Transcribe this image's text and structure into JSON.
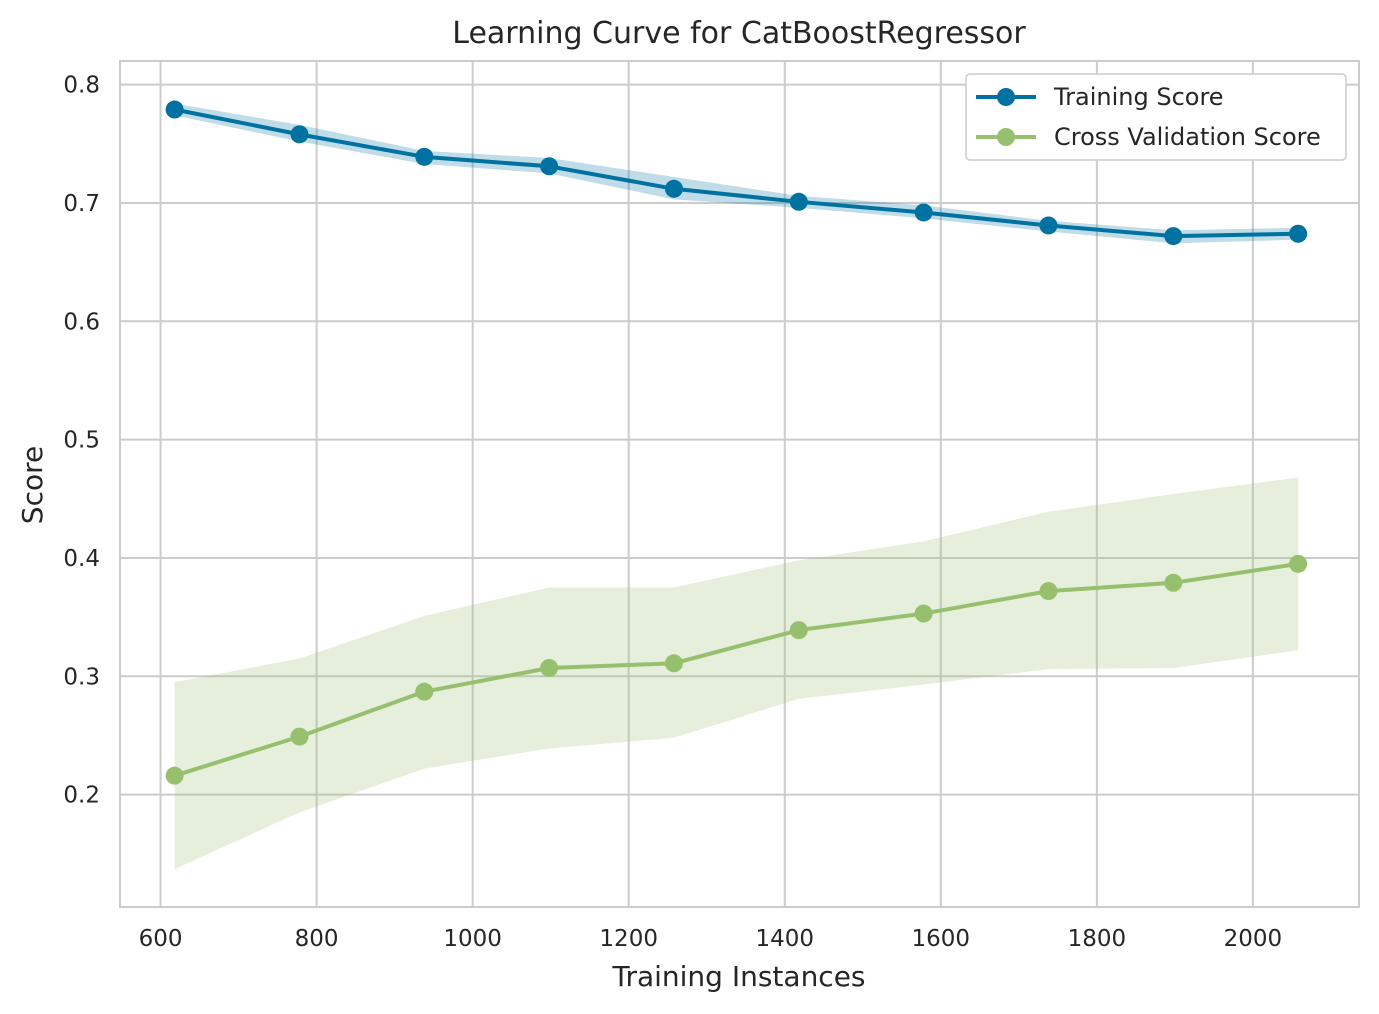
{
  "chart_data": {
    "type": "line",
    "title": "Learning Curve for CatBoostRegressor",
    "xlabel": "Training Instances",
    "ylabel": "Score",
    "xlim": [
      548,
      2136
    ],
    "ylim": [
      0.105,
      0.82
    ],
    "xticks": [
      600,
      800,
      1000,
      1200,
      1400,
      1600,
      1800,
      2000
    ],
    "yticks": [
      0.2,
      0.3,
      0.4,
      0.5,
      0.6,
      0.7,
      0.8
    ],
    "xtick_labels": [
      "600",
      "800",
      "1000",
      "1200",
      "1400",
      "1600",
      "1800",
      "2000"
    ],
    "ytick_labels": [
      "0.2",
      "0.3",
      "0.4",
      "0.5",
      "0.6",
      "0.7",
      "0.8"
    ],
    "grid": true,
    "legend_position": "top-right",
    "x": [
      618,
      778,
      938,
      1098,
      1258,
      1418,
      1578,
      1738,
      1898,
      2058
    ],
    "series": [
      {
        "name": "Training Score",
        "color": "#0072a2",
        "values": [
          0.779,
          0.758,
          0.739,
          0.731,
          0.712,
          0.701,
          0.692,
          0.681,
          0.672,
          0.674
        ],
        "band_upper": [
          0.784,
          0.766,
          0.744,
          0.738,
          0.722,
          0.706,
          0.698,
          0.685,
          0.677,
          0.679
        ],
        "band_lower": [
          0.774,
          0.752,
          0.733,
          0.725,
          0.703,
          0.696,
          0.687,
          0.676,
          0.666,
          0.669
        ]
      },
      {
        "name": "Cross Validation Score",
        "color": "#97c06e",
        "values": [
          0.216,
          0.249,
          0.287,
          0.307,
          0.311,
          0.339,
          0.353,
          0.372,
          0.379,
          0.395
        ],
        "band_upper": [
          0.295,
          0.315,
          0.351,
          0.375,
          0.375,
          0.398,
          0.414,
          0.439,
          0.454,
          0.468
        ],
        "band_lower": [
          0.137,
          0.185,
          0.222,
          0.239,
          0.248,
          0.281,
          0.293,
          0.306,
          0.307,
          0.322
        ]
      }
    ]
  }
}
